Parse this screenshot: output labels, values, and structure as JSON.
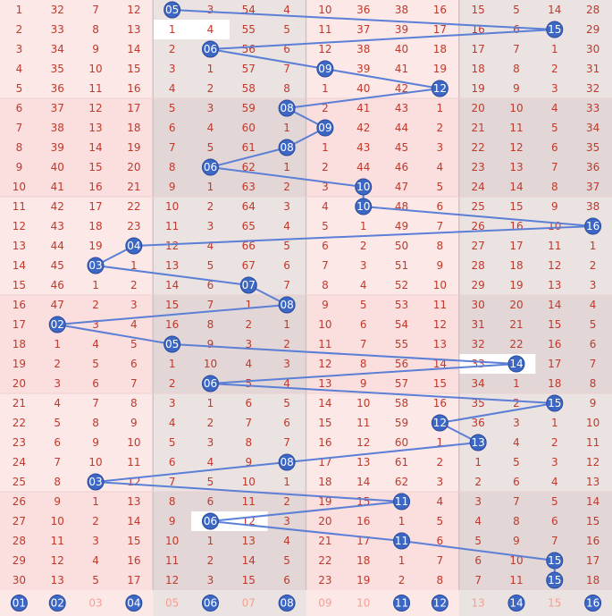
{
  "chart_data": {
    "type": "table",
    "title": "",
    "column_count": 16,
    "rows": [
      [
        1,
        32,
        7,
        12,
        5,
        3,
        54,
        4,
        10,
        36,
        38,
        16,
        15,
        5,
        14,
        28
      ],
      [
        2,
        33,
        8,
        13,
        1,
        4,
        55,
        5,
        11,
        37,
        39,
        17,
        16,
        6,
        15,
        29
      ],
      [
        3,
        34,
        9,
        14,
        2,
        6,
        56,
        6,
        12,
        38,
        40,
        18,
        17,
        7,
        1,
        30
      ],
      [
        4,
        35,
        10,
        15,
        3,
        1,
        57,
        7,
        9,
        39,
        41,
        19,
        18,
        8,
        2,
        31
      ],
      [
        5,
        36,
        11,
        16,
        4,
        2,
        58,
        8,
        1,
        40,
        42,
        12,
        19,
        9,
        3,
        32
      ],
      [
        6,
        37,
        12,
        17,
        5,
        3,
        59,
        8,
        2,
        41,
        43,
        1,
        20,
        10,
        4,
        33
      ],
      [
        7,
        38,
        13,
        18,
        6,
        4,
        60,
        1,
        9,
        42,
        44,
        2,
        21,
        11,
        5,
        34
      ],
      [
        8,
        39,
        14,
        19,
        7,
        5,
        61,
        8,
        1,
        43,
        45,
        3,
        22,
        12,
        6,
        35
      ],
      [
        9,
        40,
        15,
        20,
        8,
        6,
        62,
        1,
        2,
        44,
        46,
        4,
        23,
        13,
        7,
        36
      ],
      [
        10,
        41,
        16,
        21,
        9,
        1,
        63,
        2,
        3,
        10,
        47,
        5,
        24,
        14,
        8,
        37
      ],
      [
        11,
        42,
        17,
        22,
        10,
        2,
        64,
        3,
        4,
        10,
        48,
        6,
        25,
        15,
        9,
        38
      ],
      [
        12,
        43,
        18,
        23,
        11,
        3,
        65,
        4,
        5,
        1,
        49,
        7,
        26,
        16,
        10,
        16
      ],
      [
        13,
        44,
        19,
        4,
        12,
        4,
        66,
        5,
        6,
        2,
        50,
        8,
        27,
        17,
        11,
        1
      ],
      [
        14,
        45,
        3,
        1,
        13,
        5,
        67,
        6,
        7,
        3,
        51,
        9,
        28,
        18,
        12,
        2
      ],
      [
        15,
        46,
        1,
        2,
        14,
        6,
        7,
        7,
        8,
        4,
        52,
        10,
        29,
        19,
        13,
        3
      ],
      [
        16,
        47,
        2,
        3,
        15,
        7,
        1,
        8,
        9,
        5,
        53,
        11,
        30,
        20,
        14,
        4
      ],
      [
        17,
        2,
        3,
        4,
        16,
        8,
        2,
        1,
        10,
        6,
        54,
        12,
        31,
        21,
        15,
        5
      ],
      [
        18,
        1,
        4,
        5,
        5,
        9,
        3,
        2,
        11,
        7,
        55,
        13,
        32,
        22,
        16,
        6
      ],
      [
        19,
        2,
        5,
        6,
        1,
        10,
        4,
        3,
        12,
        8,
        56,
        14,
        33,
        14,
        17,
        7
      ],
      [
        20,
        3,
        6,
        7,
        2,
        6,
        5,
        4,
        13,
        9,
        57,
        15,
        34,
        1,
        18,
        8
      ],
      [
        21,
        4,
        7,
        8,
        3,
        1,
        6,
        5,
        14,
        10,
        58,
        16,
        35,
        2,
        15,
        9
      ],
      [
        22,
        5,
        8,
        9,
        4,
        2,
        7,
        6,
        15,
        11,
        59,
        12,
        36,
        3,
        1,
        10
      ],
      [
        23,
        6,
        9,
        10,
        5,
        3,
        8,
        7,
        16,
        12,
        60,
        1,
        13,
        4,
        2,
        11
      ],
      [
        24,
        7,
        10,
        11,
        6,
        4,
        9,
        8,
        17,
        13,
        61,
        2,
        1,
        5,
        3,
        12
      ],
      [
        25,
        8,
        3,
        12,
        7,
        5,
        10,
        1,
        18,
        14,
        62,
        3,
        2,
        6,
        4,
        13
      ],
      [
        26,
        9,
        1,
        13,
        8,
        6,
        11,
        2,
        19,
        15,
        11,
        4,
        3,
        7,
        5,
        14
      ],
      [
        27,
        10,
        2,
        14,
        9,
        6,
        12,
        3,
        20,
        16,
        1,
        5,
        4,
        8,
        6,
        15
      ],
      [
        28,
        11,
        3,
        15,
        10,
        1,
        13,
        4,
        21,
        17,
        11,
        6,
        5,
        9,
        7,
        16
      ],
      [
        29,
        12,
        4,
        16,
        11,
        2,
        14,
        5,
        22,
        18,
        1,
        7,
        6,
        10,
        15,
        17
      ],
      [
        30,
        13,
        5,
        17,
        12,
        3,
        15,
        6,
        23,
        19,
        2,
        8,
        7,
        11,
        15,
        18
      ]
    ],
    "hits": [
      {
        "row": 1,
        "col": 5,
        "label": "05"
      },
      {
        "row": 2,
        "col": 15,
        "label": "15"
      },
      {
        "row": 3,
        "col": 6,
        "label": "06"
      },
      {
        "row": 4,
        "col": 9,
        "label": "09"
      },
      {
        "row": 5,
        "col": 12,
        "label": "12"
      },
      {
        "row": 6,
        "col": 8,
        "label": "08"
      },
      {
        "row": 7,
        "col": 9,
        "label": "09"
      },
      {
        "row": 8,
        "col": 8,
        "label": "08"
      },
      {
        "row": 9,
        "col": 6,
        "label": "06"
      },
      {
        "row": 10,
        "col": 10,
        "label": "10"
      },
      {
        "row": 11,
        "col": 10,
        "label": "10"
      },
      {
        "row": 12,
        "col": 16,
        "label": "16"
      },
      {
        "row": 13,
        "col": 4,
        "label": "04"
      },
      {
        "row": 14,
        "col": 3,
        "label": "03"
      },
      {
        "row": 15,
        "col": 7,
        "label": "07"
      },
      {
        "row": 16,
        "col": 8,
        "label": "08"
      },
      {
        "row": 17,
        "col": 2,
        "label": "02"
      },
      {
        "row": 18,
        "col": 5,
        "label": "05"
      },
      {
        "row": 19,
        "col": 14,
        "label": "14"
      },
      {
        "row": 20,
        "col": 6,
        "label": "06"
      },
      {
        "row": 21,
        "col": 15,
        "label": "15"
      },
      {
        "row": 22,
        "col": 12,
        "label": "12"
      },
      {
        "row": 23,
        "col": 13,
        "label": "13"
      },
      {
        "row": 24,
        "col": 8,
        "label": "08"
      },
      {
        "row": 25,
        "col": 3,
        "label": "03"
      },
      {
        "row": 26,
        "col": 11,
        "label": "11"
      },
      {
        "row": 27,
        "col": 6,
        "label": "06"
      },
      {
        "row": 28,
        "col": 11,
        "label": "11"
      },
      {
        "row": 29,
        "col": 15,
        "label": "15"
      },
      {
        "row": 30,
        "col": 15,
        "label": "15"
      }
    ],
    "footer": [
      {
        "label": "01",
        "hit": true
      },
      {
        "label": "02",
        "hit": true
      },
      {
        "label": "03",
        "hit": false
      },
      {
        "label": "04",
        "hit": true
      },
      {
        "label": "05",
        "hit": false
      },
      {
        "label": "06",
        "hit": true
      },
      {
        "label": "07",
        "hit": false
      },
      {
        "label": "08",
        "hit": true
      },
      {
        "label": "09",
        "hit": false
      },
      {
        "label": "10",
        "hit": false
      },
      {
        "label": "11",
        "hit": true
      },
      {
        "label": "12",
        "hit": true
      },
      {
        "label": "13",
        "hit": false
      },
      {
        "label": "14",
        "hit": true
      },
      {
        "label": "15",
        "hit": false
      },
      {
        "label": "16",
        "hit": true
      }
    ],
    "colors": {
      "pink_bg": "#fde8e8",
      "pink_bg_alt": "#fbdede",
      "gray_bg": "#ebe2e2",
      "gray_bg_alt": "#e2d6d6",
      "white_bg": "#ffffff",
      "number_text": "#c0392b",
      "ball_fill": "#3d67c5",
      "ball_stroke": "#2a4a99",
      "line": "#5b7fd6",
      "footer_text": "#f4a090"
    }
  }
}
